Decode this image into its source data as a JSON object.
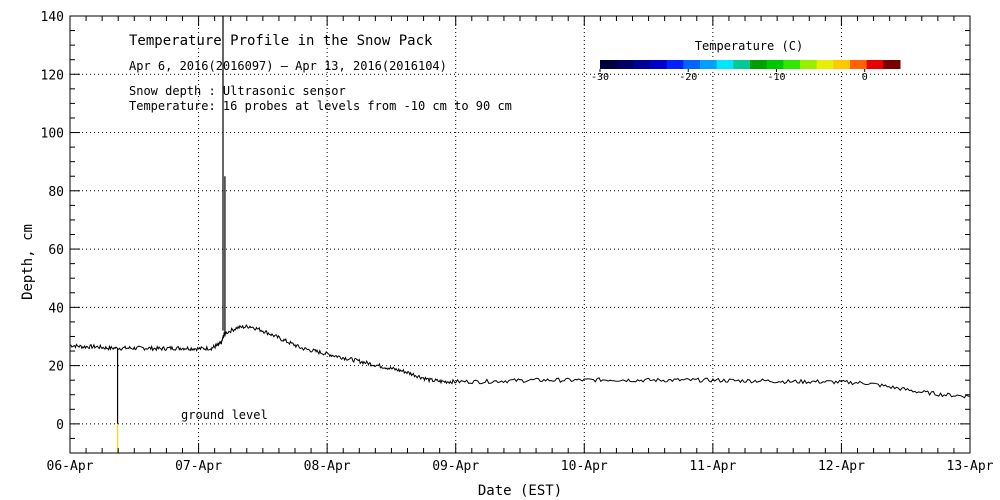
{
  "chart_data": {
    "type": "line",
    "title": "Temperature Profile in the Snow Pack",
    "subtitle": "Apr  6, 2016(2016097) – Apr 13, 2016(2016104)",
    "notes": [
      "Snow depth : Ultrasonic sensor",
      "Temperature: 16 probes at levels from -10 cm to 90 cm"
    ],
    "xlabel": "Date (EST)",
    "ylabel": "Depth, cm",
    "x_ticks": [
      "06-Apr",
      "07-Apr",
      "08-Apr",
      "09-Apr",
      "10-Apr",
      "11-Apr",
      "12-Apr",
      "13-Apr"
    ],
    "xlim": [
      0,
      7
    ],
    "ylim": [
      -10,
      140
    ],
    "y_ticks": [
      0,
      20,
      40,
      60,
      80,
      100,
      120,
      140
    ],
    "grid": true,
    "annotation": "ground level",
    "colorbar": {
      "title": "Temperature (C)",
      "ticks": [
        "-30",
        "-20",
        "-10",
        "0"
      ],
      "tick_values": [
        -30,
        -20,
        -10,
        0
      ],
      "range": [
        -30,
        4
      ],
      "colors": [
        "#00003c",
        "#000064",
        "#000096",
        "#0000c8",
        "#0020ff",
        "#0064ff",
        "#00a0ff",
        "#00e6ff",
        "#00c896",
        "#00a000",
        "#00c800",
        "#32e600",
        "#96f000",
        "#e6f000",
        "#ffc800",
        "#ff6400",
        "#e60000",
        "#780000"
      ]
    },
    "series": [
      {
        "color": "#000000",
        "x": [
          0,
          0.1,
          0.2,
          0.3,
          0.4,
          0.5,
          0.6,
          0.7,
          0.8,
          0.9,
          1.0,
          1.1,
          1.15,
          1.18,
          1.2,
          1.3,
          1.4,
          1.5,
          1.6,
          1.7,
          1.8,
          1.9,
          2.0,
          2.1,
          2.2,
          2.3,
          2.4,
          2.5,
          2.6,
          2.7,
          2.8,
          2.9,
          3.0,
          3.2,
          3.4,
          3.6,
          3.8,
          4.0,
          4.2,
          4.4,
          4.6,
          4.8,
          5.0,
          5.2,
          5.4,
          5.6,
          5.8,
          6.0,
          6.2,
          6.4,
          6.6,
          6.8,
          7.0
        ],
        "values": [
          27,
          26.5,
          26.5,
          26,
          26,
          26,
          26,
          25.8,
          26,
          26,
          25.8,
          26,
          27,
          28,
          31,
          33,
          33.5,
          32,
          30,
          28,
          26,
          25,
          24,
          23,
          22,
          21,
          20,
          19,
          18,
          16.5,
          15,
          14.5,
          14.5,
          14.5,
          14.8,
          15,
          15,
          15,
          15.2,
          15,
          15,
          15,
          15,
          14.8,
          14.8,
          14.5,
          14.5,
          14.3,
          14,
          12.5,
          11,
          10,
          9.5
        ]
      }
    ],
    "vertical_lines": [
      {
        "x": 0.37,
        "y_from": 0,
        "y_to": 26,
        "color": "#000000"
      },
      {
        "x": 0.37,
        "y_from": -10,
        "y_to": 0,
        "color": "#ffd700"
      },
      {
        "x": 1.19,
        "y_from": 32,
        "y_to": 140,
        "color": "#000000"
      },
      {
        "x": 1.205,
        "y_from": 30,
        "y_to": 85,
        "color": "#000000"
      }
    ]
  }
}
